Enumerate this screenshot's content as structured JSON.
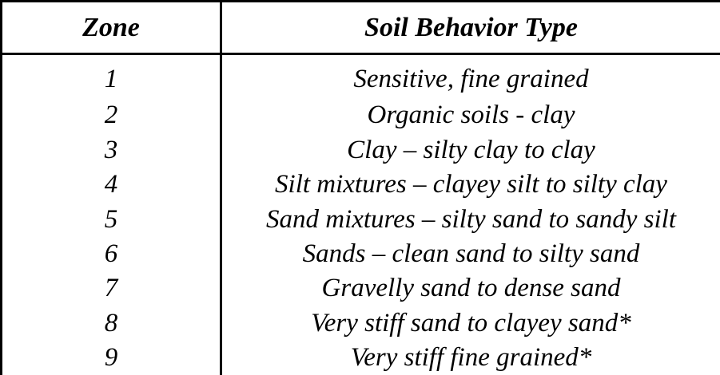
{
  "table": {
    "headers": {
      "zone": "Zone",
      "type": "Soil Behavior Type"
    },
    "rows": [
      {
        "zone": "1",
        "type": "Sensitive, fine grained"
      },
      {
        "zone": "2",
        "type": "Organic soils - clay"
      },
      {
        "zone": "3",
        "type": "Clay – silty clay to clay"
      },
      {
        "zone": "4",
        "type": "Silt mixtures – clayey silt to silty clay"
      },
      {
        "zone": "5",
        "type": "Sand mixtures – silty sand to sandy silt"
      },
      {
        "zone": "6",
        "type": "Sands – clean sand to silty sand"
      },
      {
        "zone": "7",
        "type": "Gravelly sand to dense sand"
      },
      {
        "zone": "8",
        "type": "Very stiff sand to clayey sand*"
      },
      {
        "zone": "9",
        "type": "Very stiff fine grained*"
      }
    ]
  }
}
